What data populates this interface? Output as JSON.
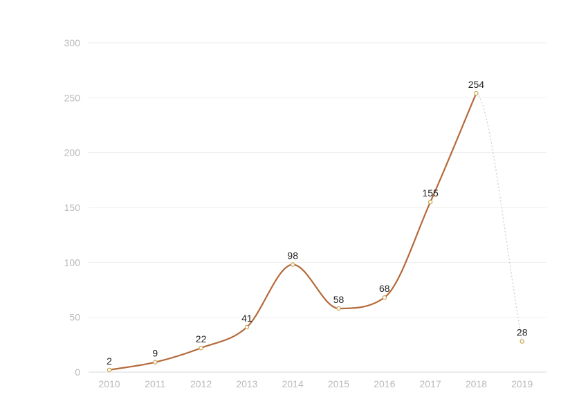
{
  "chart_data": {
    "type": "line",
    "title": "",
    "xlabel": "",
    "ylabel": "",
    "categories": [
      "2010",
      "2011",
      "2012",
      "2013",
      "2014",
      "2015",
      "2016",
      "2017",
      "2018",
      "2019"
    ],
    "values": [
      2,
      9,
      22,
      41,
      98,
      58,
      68,
      155,
      254,
      28
    ],
    "data_labels": [
      "2",
      "9",
      "22",
      "41",
      "98",
      "58",
      "68",
      "155",
      "254",
      "28"
    ],
    "y_ticks": [
      0,
      50,
      100,
      150,
      200,
      250,
      300
    ],
    "ylim": [
      0,
      300
    ],
    "grid": true,
    "legend": "none",
    "line_style": "smooth solid through 2018, dotted from 2018 to 2019",
    "colors": {
      "line": "#b4693a",
      "point_stroke": "#c8a24a",
      "projected_line": "#c9c9c9"
    }
  }
}
